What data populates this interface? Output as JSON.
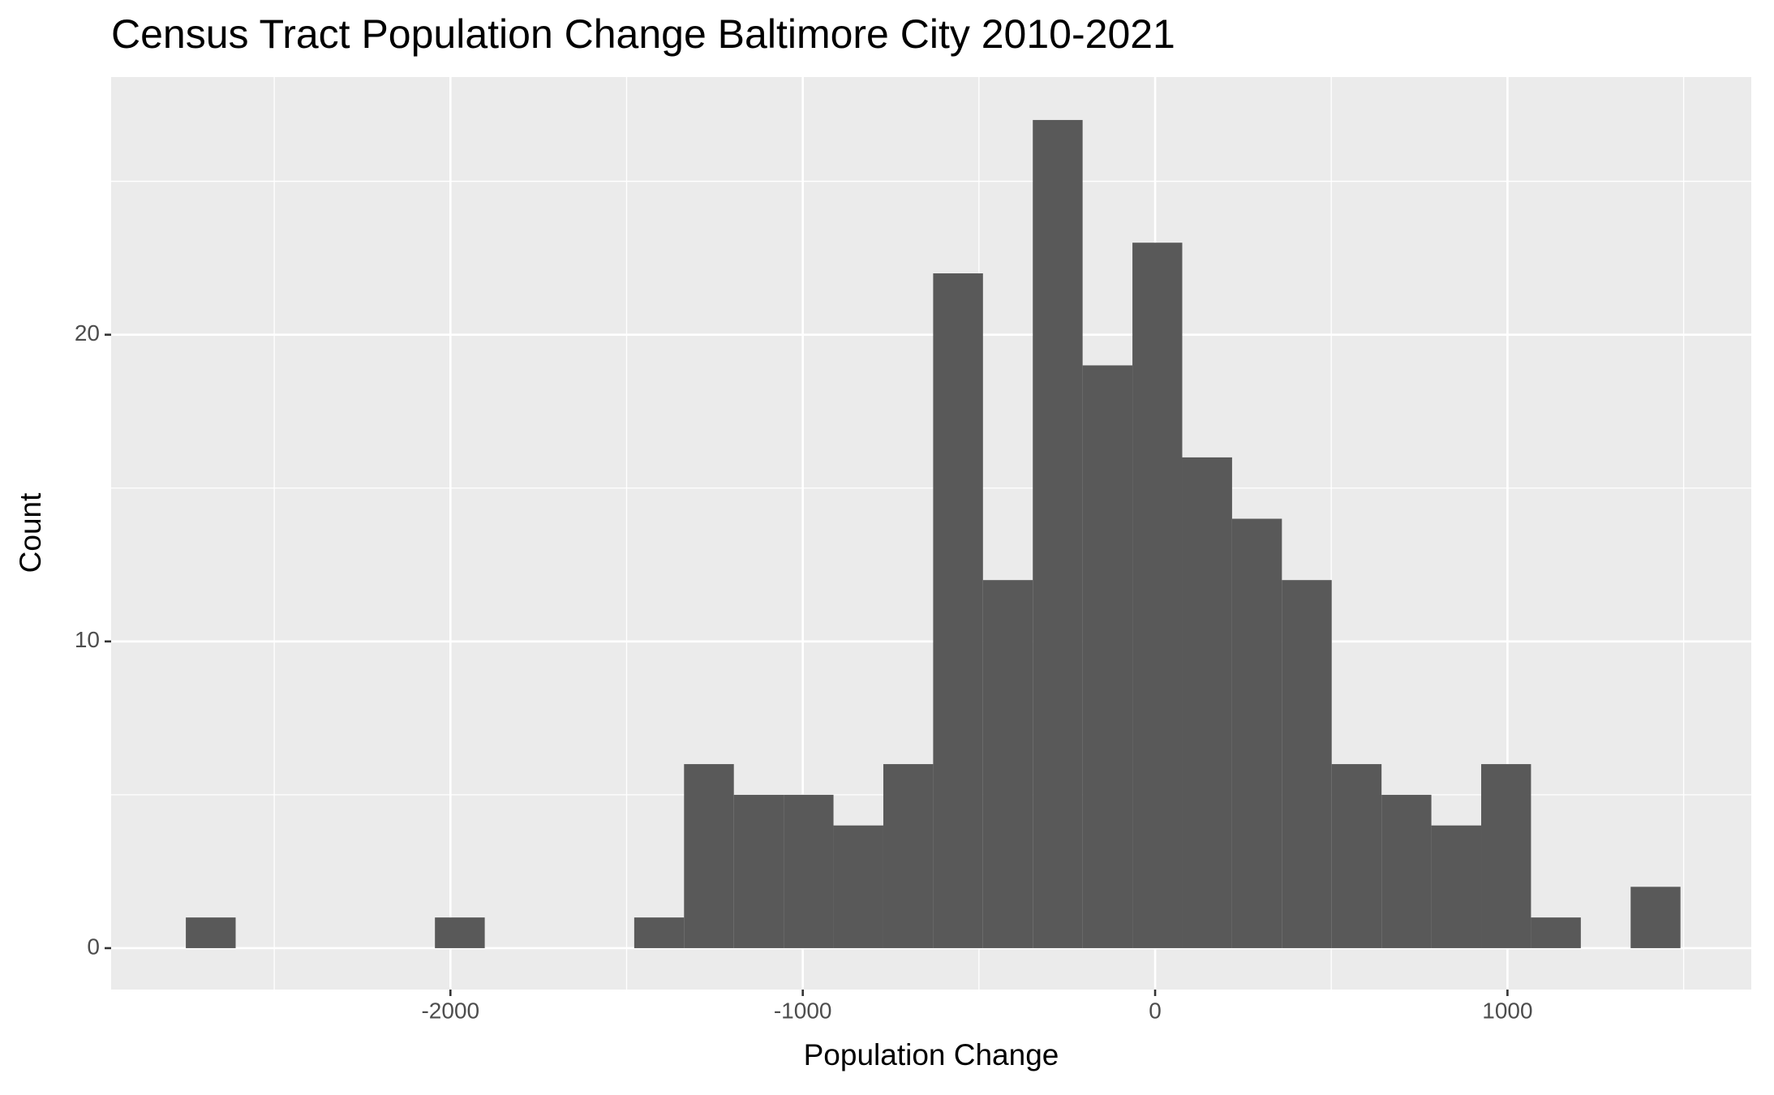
{
  "chart_data": {
    "type": "histogram",
    "title": "Census Tract Population Change Baltimore City 2010-2021",
    "x_label": "Population Change",
    "y_label": "Count",
    "bins": [
      -2751,
      -2609.6,
      -2468.2,
      -2326.8,
      -2185.4,
      -2044,
      -1902.6,
      -1761.2,
      -1619.8,
      -1478.4,
      -1337,
      -1195.6,
      -1054.2,
      -912.8,
      -771.4,
      -630,
      -488.6,
      -347.2,
      -205.8,
      -64.4,
      77,
      218.4,
      359.8,
      501.2,
      642.6,
      784,
      925.4,
      1066.8,
      1208.2,
      1349.6,
      1491
    ],
    "values": [
      1,
      0,
      0,
      0,
      0,
      1,
      0,
      0,
      0,
      1,
      6,
      5,
      5,
      4,
      6,
      22,
      12,
      27,
      19,
      23,
      16,
      14,
      12,
      6,
      5,
      4,
      6,
      1,
      0,
      2
    ],
    "color": "#595959",
    "xlim": [
      -2963,
      1692
    ],
    "xticks": [
      -2000,
      -1000,
      0,
      1000
    ],
    "ylim": [
      -1.35,
      28.4
    ],
    "yticks": [
      0,
      10,
      20
    ],
    "grid": true
  }
}
